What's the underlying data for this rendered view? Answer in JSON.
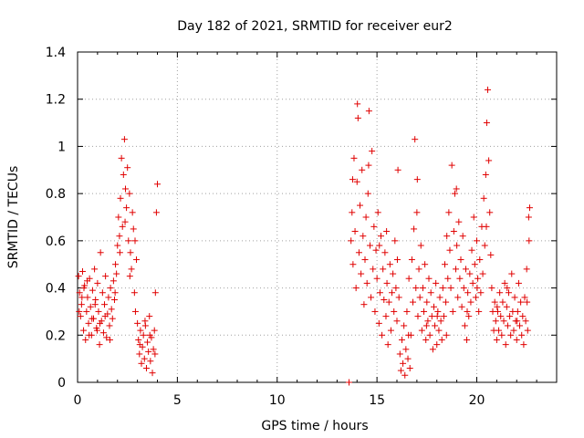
{
  "chart_data": {
    "type": "scatter",
    "title": "Day 182 of 2021, SRMTID for receiver eur2",
    "xlabel": "GPS time / hours",
    "ylabel": "SRMTID / TECUs",
    "xlim": [
      0,
      24
    ],
    "ylim": [
      0,
      1.4
    ],
    "x_ticks": [
      "0",
      "5",
      "10",
      "15",
      "20"
    ],
    "y_ticks": [
      "0",
      "0.2",
      "0.4",
      "0.6",
      "0.8",
      "1",
      "1.2",
      "1.4"
    ],
    "grid": true,
    "marker": "+",
    "color": "#e00000",
    "series": [
      {
        "name": "eur2",
        "points": [
          [
            0.05,
            0.45
          ],
          [
            0.1,
            0.38
          ],
          [
            0.15,
            0.28
          ],
          [
            0.2,
            0.33
          ],
          [
            0.25,
            0.47
          ],
          [
            0.3,
            0.22
          ],
          [
            0.35,
            0.41
          ],
          [
            0.4,
            0.18
          ],
          [
            0.45,
            0.3
          ],
          [
            0.5,
            0.36
          ],
          [
            0.55,
            0.25
          ],
          [
            0.6,
            0.44
          ],
          [
            0.65,
            0.32
          ],
          [
            0.7,
            0.2
          ],
          [
            0.75,
            0.39
          ],
          [
            0.8,
            0.27
          ],
          [
            0.85,
            0.48
          ],
          [
            0.9,
            0.35
          ],
          [
            0.95,
            0.23
          ],
          [
            1.0,
            0.42
          ],
          [
            1.05,
            0.3
          ],
          [
            1.1,
            0.16
          ],
          [
            1.15,
            0.55
          ],
          [
            1.2,
            0.26
          ],
          [
            1.25,
            0.38
          ],
          [
            1.3,
            0.21
          ],
          [
            1.35,
            0.33
          ],
          [
            1.4,
            0.45
          ],
          [
            1.45,
            0.19
          ],
          [
            1.5,
            0.29
          ],
          [
            1.55,
            0.36
          ],
          [
            1.6,
            0.24
          ],
          [
            1.65,
            0.4
          ],
          [
            1.7,
            0.31
          ],
          [
            1.75,
            0.27
          ],
          [
            1.8,
            0.43
          ],
          [
            1.85,
            0.35
          ],
          [
            1.9,
            0.5
          ],
          [
            1.95,
            0.46
          ],
          [
            2.0,
            0.58
          ],
          [
            2.05,
            0.7
          ],
          [
            2.1,
            0.62
          ],
          [
            2.15,
            0.78
          ],
          [
            2.2,
            0.95
          ],
          [
            2.25,
            0.66
          ],
          [
            2.3,
            0.88
          ],
          [
            2.35,
            1.03
          ],
          [
            2.4,
            0.82
          ],
          [
            2.45,
            0.74
          ],
          [
            2.5,
            0.91
          ],
          [
            2.55,
            0.6
          ],
          [
            2.6,
            0.8
          ],
          [
            2.65,
            0.55
          ],
          [
            2.7,
            0.48
          ],
          [
            2.75,
            0.72
          ],
          [
            2.8,
            0.65
          ],
          [
            2.85,
            0.38
          ],
          [
            2.9,
            0.3
          ],
          [
            2.95,
            0.52
          ],
          [
            3.0,
            0.25
          ],
          [
            3.05,
            0.18
          ],
          [
            3.1,
            0.12
          ],
          [
            3.15,
            0.22
          ],
          [
            3.2,
            0.08
          ],
          [
            3.25,
            0.15
          ],
          [
            3.3,
            0.2
          ],
          [
            3.35,
            0.1
          ],
          [
            3.4,
            0.24
          ],
          [
            3.45,
            0.06
          ],
          [
            3.5,
            0.17
          ],
          [
            3.55,
            0.13
          ],
          [
            3.6,
            0.28
          ],
          [
            3.65,
            0.09
          ],
          [
            3.7,
            0.19
          ],
          [
            3.75,
            0.04
          ],
          [
            3.8,
            0.14
          ],
          [
            3.85,
            0.22
          ],
          [
            3.9,
            0.38
          ],
          [
            3.95,
            0.72
          ],
          [
            4.0,
            0.84
          ],
          [
            0.08,
            0.3
          ],
          [
            0.32,
            0.4
          ],
          [
            0.58,
            0.2
          ],
          [
            0.88,
            0.33
          ],
          [
            1.12,
            0.25
          ],
          [
            1.38,
            0.28
          ],
          [
            1.62,
            0.18
          ],
          [
            1.88,
            0.38
          ],
          [
            2.12,
            0.55
          ],
          [
            2.38,
            0.68
          ],
          [
            2.62,
            0.45
          ],
          [
            2.88,
            0.6
          ],
          [
            3.12,
            0.16
          ],
          [
            3.38,
            0.26
          ],
          [
            3.62,
            0.2
          ],
          [
            3.88,
            0.12
          ],
          [
            0.22,
            0.36
          ],
          [
            0.48,
            0.43
          ],
          [
            0.72,
            0.27
          ],
          [
            0.98,
            0.22
          ],
          [
            13.6,
            0.0
          ],
          [
            13.7,
            0.6
          ],
          [
            13.75,
            0.72
          ],
          [
            13.8,
            0.5
          ],
          [
            13.85,
            0.95
          ],
          [
            13.9,
            0.64
          ],
          [
            13.95,
            0.4
          ],
          [
            14.0,
            0.85
          ],
          [
            14.05,
            1.12
          ],
          [
            14.1,
            0.55
          ],
          [
            14.15,
            0.75
          ],
          [
            14.2,
            0.46
          ],
          [
            14.25,
            0.9
          ],
          [
            14.3,
            0.62
          ],
          [
            14.35,
            0.33
          ],
          [
            14.4,
            0.52
          ],
          [
            14.45,
            0.7
          ],
          [
            14.5,
            0.42
          ],
          [
            14.55,
            0.8
          ],
          [
            14.6,
            1.15
          ],
          [
            14.65,
            0.58
          ],
          [
            14.7,
            0.36
          ],
          [
            14.75,
            0.98
          ],
          [
            14.8,
            0.48
          ],
          [
            14.85,
            0.66
          ],
          [
            14.9,
            0.3
          ],
          [
            14.95,
            0.56
          ],
          [
            15.0,
            0.44
          ],
          [
            15.05,
            0.72
          ],
          [
            15.1,
            0.25
          ],
          [
            15.15,
            0.38
          ],
          [
            15.2,
            0.62
          ],
          [
            15.25,
            0.2
          ],
          [
            15.3,
            0.48
          ],
          [
            15.35,
            0.35
          ],
          [
            15.4,
            0.55
          ],
          [
            15.45,
            0.28
          ],
          [
            15.5,
            0.42
          ],
          [
            15.55,
            0.16
          ],
          [
            15.6,
            0.34
          ],
          [
            15.65,
            0.5
          ],
          [
            15.7,
            0.22
          ],
          [
            15.75,
            0.38
          ],
          [
            15.8,
            0.46
          ],
          [
            15.85,
            0.3
          ],
          [
            15.9,
            0.6
          ],
          [
            15.95,
            0.4
          ],
          [
            16.0,
            0.26
          ],
          [
            16.05,
            0.9
          ],
          [
            16.1,
            0.36
          ],
          [
            16.15,
            0.12
          ],
          [
            16.2,
            0.05
          ],
          [
            16.25,
            0.18
          ],
          [
            16.3,
            0.08
          ],
          [
            16.35,
            0.24
          ],
          [
            16.4,
            0.03
          ],
          [
            16.45,
            0.14
          ],
          [
            16.5,
            0.3
          ],
          [
            16.55,
            0.1
          ],
          [
            16.6,
            0.44
          ],
          [
            16.65,
            0.06
          ],
          [
            16.7,
            0.2
          ],
          [
            16.75,
            0.52
          ],
          [
            16.8,
            0.34
          ],
          [
            16.85,
            0.65
          ],
          [
            16.9,
            1.03
          ],
          [
            16.95,
            0.4
          ],
          [
            17.0,
            0.72
          ],
          [
            17.05,
            0.28
          ],
          [
            17.1,
            0.48
          ],
          [
            17.15,
            0.36
          ],
          [
            17.2,
            0.58
          ],
          [
            17.25,
            0.22
          ],
          [
            17.3,
            0.4
          ],
          [
            17.35,
            0.3
          ],
          [
            17.4,
            0.5
          ],
          [
            17.45,
            0.18
          ],
          [
            17.5,
            0.34
          ],
          [
            17.55,
            0.26
          ],
          [
            17.6,
            0.44
          ],
          [
            17.65,
            0.2
          ],
          [
            17.7,
            0.38
          ],
          [
            17.75,
            0.28
          ],
          [
            17.8,
            0.14
          ],
          [
            17.85,
            0.32
          ],
          [
            17.9,
            0.24
          ],
          [
            17.95,
            0.42
          ],
          [
            18.0,
            0.16
          ],
          [
            18.05,
            0.3
          ],
          [
            18.1,
            0.22
          ],
          [
            18.15,
            0.36
          ],
          [
            18.2,
            0.26
          ],
          [
            18.25,
            0.18
          ],
          [
            18.3,
            0.4
          ],
          [
            18.35,
            0.28
          ],
          [
            18.4,
            0.5
          ],
          [
            18.45,
            0.34
          ],
          [
            18.5,
            0.62
          ],
          [
            18.55,
            0.44
          ],
          [
            18.6,
            0.72
          ],
          [
            18.65,
            0.56
          ],
          [
            18.7,
            0.4
          ],
          [
            18.75,
            0.92
          ],
          [
            18.8,
            0.3
          ],
          [
            18.85,
            0.64
          ],
          [
            18.9,
            0.8
          ],
          [
            18.95,
            0.48
          ],
          [
            19.0,
            0.58
          ],
          [
            19.05,
            0.36
          ],
          [
            19.1,
            0.68
          ],
          [
            19.15,
            0.44
          ],
          [
            19.2,
            0.52
          ],
          [
            19.25,
            0.32
          ],
          [
            19.3,
            0.62
          ],
          [
            19.35,
            0.4
          ],
          [
            19.4,
            0.24
          ],
          [
            19.45,
            0.48
          ],
          [
            19.5,
            0.18
          ],
          [
            19.55,
            0.38
          ],
          [
            19.6,
            0.28
          ],
          [
            19.65,
            0.46
          ],
          [
            19.7,
            0.34
          ],
          [
            19.75,
            0.56
          ],
          [
            19.8,
            0.42
          ],
          [
            19.85,
            0.7
          ],
          [
            19.9,
            0.5
          ],
          [
            19.95,
            0.36
          ],
          [
            20.0,
            0.6
          ],
          [
            20.05,
            0.44
          ],
          [
            20.1,
            0.3
          ],
          [
            20.15,
            0.52
          ],
          [
            20.2,
            0.38
          ],
          [
            20.25,
            0.66
          ],
          [
            20.3,
            0.46
          ],
          [
            20.35,
            0.78
          ],
          [
            20.4,
            0.58
          ],
          [
            20.45,
            0.88
          ],
          [
            20.5,
            1.1
          ],
          [
            20.55,
            1.24
          ],
          [
            20.6,
            0.94
          ],
          [
            20.65,
            0.72
          ],
          [
            20.7,
            0.54
          ],
          [
            20.75,
            0.4
          ],
          [
            20.8,
            0.3
          ],
          [
            20.85,
            0.22
          ],
          [
            20.9,
            0.34
          ],
          [
            20.95,
            0.26
          ],
          [
            21.0,
            0.18
          ],
          [
            21.05,
            0.3
          ],
          [
            21.1,
            0.22
          ],
          [
            21.15,
            0.38
          ],
          [
            21.2,
            0.28
          ],
          [
            21.25,
            0.2
          ],
          [
            21.3,
            0.34
          ],
          [
            21.35,
            0.26
          ],
          [
            21.4,
            0.42
          ],
          [
            21.45,
            0.16
          ],
          [
            21.5,
            0.32
          ],
          [
            21.55,
            0.24
          ],
          [
            21.6,
            0.38
          ],
          [
            21.65,
            0.28
          ],
          [
            21.7,
            0.2
          ],
          [
            21.75,
            0.46
          ],
          [
            21.8,
            0.3
          ],
          [
            21.85,
            0.22
          ],
          [
            21.9,
            0.36
          ],
          [
            21.95,
            0.26
          ],
          [
            22.0,
            0.18
          ],
          [
            22.05,
            0.3
          ],
          [
            22.1,
            0.42
          ],
          [
            22.15,
            0.24
          ],
          [
            22.2,
            0.34
          ],
          [
            22.25,
            0.2
          ],
          [
            22.3,
            0.28
          ],
          [
            22.35,
            0.16
          ],
          [
            22.4,
            0.36
          ],
          [
            22.45,
            0.26
          ],
          [
            22.5,
            0.48
          ],
          [
            22.55,
            0.22
          ],
          [
            22.6,
            0.7
          ],
          [
            22.65,
            0.74
          ],
          [
            13.78,
            0.86
          ],
          [
            14.02,
            1.18
          ],
          [
            14.58,
            0.92
          ],
          [
            15.12,
            0.58
          ],
          [
            15.48,
            0.64
          ],
          [
            16.02,
            0.52
          ],
          [
            16.58,
            0.2
          ],
          [
            17.02,
            0.86
          ],
          [
            17.48,
            0.24
          ],
          [
            18.02,
            0.28
          ],
          [
            18.48,
            0.2
          ],
          [
            18.98,
            0.82
          ],
          [
            19.52,
            0.3
          ],
          [
            20.02,
            0.4
          ],
          [
            20.48,
            0.66
          ],
          [
            21.02,
            0.32
          ],
          [
            21.52,
            0.4
          ],
          [
            22.02,
            0.26
          ],
          [
            22.52,
            0.34
          ],
          [
            22.62,
            0.6
          ]
        ]
      }
    ]
  }
}
